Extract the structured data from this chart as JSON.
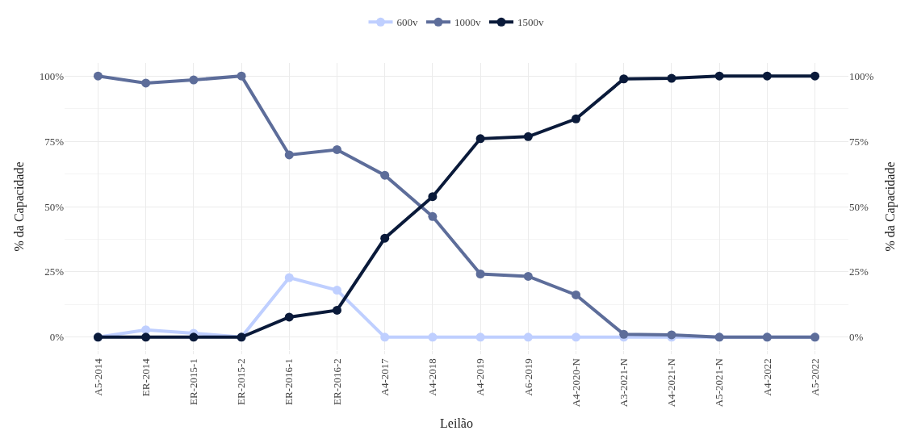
{
  "chart_data": {
    "type": "line",
    "xlabel": "Leilão",
    "ylabel": "% da Capacidade",
    "y2label": "% da Capacidade",
    "categories": [
      "A5-2014",
      "ER-2014",
      "ER-2015-1",
      "ER-2015-2",
      "ER-2016-1",
      "ER-2016-2",
      "A4-2017",
      "A4-2018",
      "A4-2019",
      "A6-2019",
      "A4-2020-N",
      "A3-2021-N",
      "A4-2021-N",
      "A5-2021-N",
      "A4-2022",
      "A5-2022"
    ],
    "series": [
      {
        "name": "600v",
        "color": "#bfcfff",
        "values": [
          0,
          2.8,
          1.5,
          0,
          22.8,
          18,
          0,
          0,
          0,
          0,
          0,
          0,
          0,
          0,
          0,
          0
        ]
      },
      {
        "name": "1000v",
        "color": "#5d6d9a",
        "values": [
          100,
          97.3,
          98.5,
          100,
          69.8,
          71.8,
          62,
          46.2,
          24.2,
          23.3,
          16.2,
          1.1,
          0.9,
          0,
          0,
          0
        ]
      },
      {
        "name": "1500v",
        "color": "#0a1a3a",
        "values": [
          0,
          0,
          0,
          0,
          7.7,
          10.3,
          37.9,
          53.8,
          76,
          76.8,
          83.6,
          98.9,
          99.1,
          100,
          100,
          100
        ]
      }
    ],
    "ylim": [
      -5,
      105
    ],
    "yticks": [
      {
        "value": 0,
        "label": "0%"
      },
      {
        "value": 25,
        "label": "25%"
      },
      {
        "value": 50,
        "label": "50%"
      },
      {
        "value": 75,
        "label": "75%"
      },
      {
        "value": 100,
        "label": "100%"
      }
    ],
    "y2lim": [
      -5,
      105
    ],
    "y2ticks": [
      {
        "value": 0,
        "label": "0%"
      },
      {
        "value": 25,
        "label": "25%"
      },
      {
        "value": 50,
        "label": "50%"
      },
      {
        "value": 75,
        "label": "75%"
      },
      {
        "value": 100,
        "label": "100%"
      }
    ],
    "grid": true,
    "legend": "top",
    "marker": "circle",
    "line_style": "solid"
  }
}
